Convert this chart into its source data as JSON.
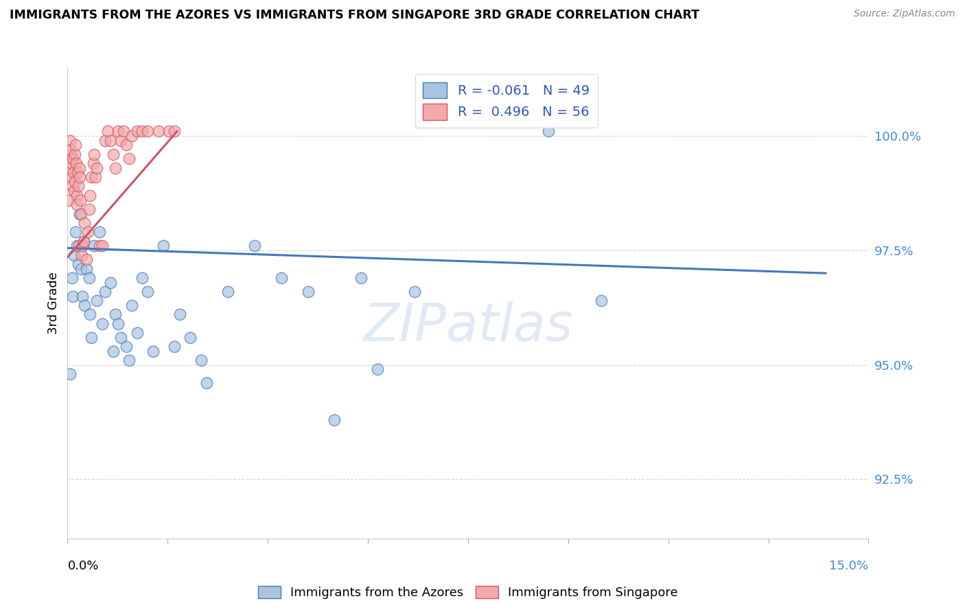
{
  "title": "IMMIGRANTS FROM THE AZORES VS IMMIGRANTS FROM SINGAPORE 3RD GRADE CORRELATION CHART",
  "source": "Source: ZipAtlas.com",
  "ylabel": "3rd Grade",
  "yticks": [
    92.5,
    95.0,
    97.5,
    100.0
  ],
  "ytick_labels": [
    "92.5%",
    "95.0%",
    "97.5%",
    "100.0%"
  ],
  "xlim": [
    0.0,
    15.0
  ],
  "ylim": [
    91.2,
    101.5
  ],
  "watermark": "ZIPatlas",
  "blue_color": "#A8C4E0",
  "pink_color": "#F4AAAA",
  "line_blue": "#4477BB",
  "line_pink": "#CC5566",
  "blue_scatter": [
    [
      0.05,
      94.8
    ],
    [
      0.08,
      96.9
    ],
    [
      0.1,
      96.5
    ],
    [
      0.12,
      97.4
    ],
    [
      0.15,
      97.9
    ],
    [
      0.18,
      97.6
    ],
    [
      0.2,
      97.2
    ],
    [
      0.22,
      98.3
    ],
    [
      0.25,
      97.1
    ],
    [
      0.28,
      96.5
    ],
    [
      0.3,
      97.7
    ],
    [
      0.32,
      96.3
    ],
    [
      0.35,
      97.1
    ],
    [
      0.4,
      96.9
    ],
    [
      0.42,
      96.1
    ],
    [
      0.45,
      95.6
    ],
    [
      0.5,
      97.6
    ],
    [
      0.55,
      96.4
    ],
    [
      0.6,
      97.9
    ],
    [
      0.65,
      95.9
    ],
    [
      0.7,
      96.6
    ],
    [
      0.8,
      96.8
    ],
    [
      0.85,
      95.3
    ],
    [
      0.9,
      96.1
    ],
    [
      0.95,
      95.9
    ],
    [
      1.0,
      95.6
    ],
    [
      1.1,
      95.4
    ],
    [
      1.15,
      95.1
    ],
    [
      1.2,
      96.3
    ],
    [
      1.3,
      95.7
    ],
    [
      1.4,
      96.9
    ],
    [
      1.5,
      96.6
    ],
    [
      1.6,
      95.3
    ],
    [
      1.8,
      97.6
    ],
    [
      2.0,
      95.4
    ],
    [
      2.1,
      96.1
    ],
    [
      2.3,
      95.6
    ],
    [
      2.5,
      95.1
    ],
    [
      2.6,
      94.6
    ],
    [
      3.0,
      96.6
    ],
    [
      3.5,
      97.6
    ],
    [
      4.0,
      96.9
    ],
    [
      4.5,
      96.6
    ],
    [
      5.0,
      93.8
    ],
    [
      5.5,
      96.9
    ],
    [
      5.8,
      94.9
    ],
    [
      6.5,
      96.6
    ],
    [
      9.0,
      100.1
    ],
    [
      10.0,
      96.4
    ]
  ],
  "pink_scatter": [
    [
      0.02,
      98.6
    ],
    [
      0.03,
      99.3
    ],
    [
      0.04,
      99.6
    ],
    [
      0.05,
      99.9
    ],
    [
      0.06,
      99.7
    ],
    [
      0.07,
      99.4
    ],
    [
      0.08,
      99.1
    ],
    [
      0.09,
      98.9
    ],
    [
      0.1,
      99.5
    ],
    [
      0.11,
      99.2
    ],
    [
      0.12,
      98.8
    ],
    [
      0.13,
      99.6
    ],
    [
      0.14,
      99.0
    ],
    [
      0.15,
      99.8
    ],
    [
      0.16,
      99.4
    ],
    [
      0.17,
      98.7
    ],
    [
      0.18,
      98.5
    ],
    [
      0.19,
      99.2
    ],
    [
      0.2,
      98.9
    ],
    [
      0.21,
      97.6
    ],
    [
      0.22,
      99.3
    ],
    [
      0.23,
      99.1
    ],
    [
      0.24,
      98.6
    ],
    [
      0.25,
      98.3
    ],
    [
      0.26,
      97.4
    ],
    [
      0.28,
      97.6
    ],
    [
      0.3,
      97.7
    ],
    [
      0.32,
      98.1
    ],
    [
      0.35,
      97.3
    ],
    [
      0.38,
      97.9
    ],
    [
      0.4,
      98.4
    ],
    [
      0.42,
      98.7
    ],
    [
      0.45,
      99.1
    ],
    [
      0.48,
      99.4
    ],
    [
      0.5,
      99.6
    ],
    [
      0.52,
      99.1
    ],
    [
      0.55,
      99.3
    ],
    [
      0.6,
      97.6
    ],
    [
      0.65,
      97.6
    ],
    [
      0.7,
      99.9
    ],
    [
      0.75,
      100.1
    ],
    [
      0.8,
      99.9
    ],
    [
      0.85,
      99.6
    ],
    [
      0.9,
      99.3
    ],
    [
      0.95,
      100.1
    ],
    [
      1.0,
      99.9
    ],
    [
      1.05,
      100.1
    ],
    [
      1.1,
      99.8
    ],
    [
      1.15,
      99.5
    ],
    [
      1.2,
      100.0
    ],
    [
      1.3,
      100.1
    ],
    [
      1.4,
      100.1
    ],
    [
      1.5,
      100.1
    ],
    [
      1.7,
      100.1
    ],
    [
      1.9,
      100.1
    ],
    [
      2.0,
      100.1
    ]
  ],
  "blue_line_x": [
    0.0,
    14.2
  ],
  "blue_line_y": [
    97.55,
    97.0
  ],
  "pink_line_x": [
    0.0,
    2.05
  ],
  "pink_line_y": [
    97.35,
    100.1
  ],
  "xtick_positions": [
    0.0,
    1.875,
    3.75,
    5.625,
    7.5,
    9.375,
    11.25,
    13.125,
    15.0
  ]
}
